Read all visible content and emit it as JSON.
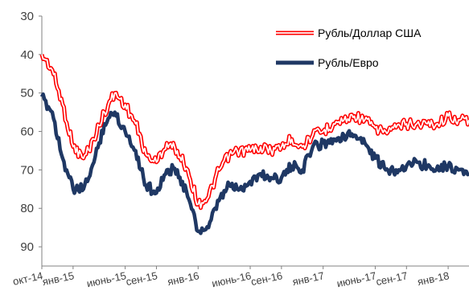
{
  "chart_data": {
    "type": "line",
    "title": "",
    "xlabel": "",
    "ylabel": "",
    "y_inverted": true,
    "ylim": [
      30,
      95
    ],
    "yticks": [
      30,
      40,
      50,
      60,
      70,
      80,
      90
    ],
    "xlim": [
      "2014-10",
      "2018-03"
    ],
    "x_tick_labels": [
      {
        "label": "окт-14",
        "date": "2014-10"
      },
      {
        "label": "янв-15",
        "date": "2015-01"
      },
      {
        "label": "июнь-15",
        "date": "2015-06"
      },
      {
        "label": "сен-15",
        "date": "2015-09"
      },
      {
        "label": "янв-16",
        "date": "2016-01"
      },
      {
        "label": "июнь-16",
        "date": "2016-06"
      },
      {
        "label": "сен-16",
        "date": "2016-09"
      },
      {
        "label": "янв-17",
        "date": "2017-01"
      },
      {
        "label": "июнь-17",
        "date": "2017-06"
      },
      {
        "label": "сен-17",
        "date": "2017-09"
      },
      {
        "label": "янв-18",
        "date": "2018-01"
      }
    ],
    "grid": false,
    "legend_position": "top-right",
    "series": [
      {
        "name": "Рубль/Доллар США",
        "color": "#ff0000",
        "style": "double-line",
        "points": [
          [
            "2014-10",
            40
          ],
          [
            "2014-11",
            44
          ],
          [
            "2014-12",
            53
          ],
          [
            "2015-01",
            64
          ],
          [
            "2015-02",
            67
          ],
          [
            "2015-03",
            62
          ],
          [
            "2015-04",
            55
          ],
          [
            "2015-05",
            50
          ],
          [
            "2015-06",
            53
          ],
          [
            "2015-07",
            58
          ],
          [
            "2015-08",
            66
          ],
          [
            "2015-09",
            68
          ],
          [
            "2015-10",
            63
          ],
          [
            "2015-11",
            65
          ],
          [
            "2015-12",
            70
          ],
          [
            "2016-01",
            79
          ],
          [
            "2016-02",
            77
          ],
          [
            "2016-03",
            70
          ],
          [
            "2016-04",
            66
          ],
          [
            "2016-05",
            65
          ],
          [
            "2016-06",
            65
          ],
          [
            "2016-07",
            64
          ],
          [
            "2016-08",
            65
          ],
          [
            "2016-09",
            64
          ],
          [
            "2016-10",
            62
          ],
          [
            "2016-11",
            64
          ],
          [
            "2016-12",
            61
          ],
          [
            "2017-01",
            60
          ],
          [
            "2017-02",
            58
          ],
          [
            "2017-03",
            57
          ],
          [
            "2017-04",
            56
          ],
          [
            "2017-05",
            57
          ],
          [
            "2017-06",
            59
          ],
          [
            "2017-07",
            60
          ],
          [
            "2017-08",
            59
          ],
          [
            "2017-09",
            58
          ],
          [
            "2017-10",
            58
          ],
          [
            "2017-11",
            58
          ],
          [
            "2017-12",
            58
          ],
          [
            "2018-01",
            56
          ],
          [
            "2018-02",
            57
          ],
          [
            "2018-03",
            57
          ]
        ]
      },
      {
        "name": "Рубль/Евро",
        "color": "#1f3864",
        "style": "thick-line",
        "points": [
          [
            "2014-10",
            51
          ],
          [
            "2014-11",
            55
          ],
          [
            "2014-12",
            67
          ],
          [
            "2015-01",
            75
          ],
          [
            "2015-02",
            75
          ],
          [
            "2015-03",
            68
          ],
          [
            "2015-04",
            58
          ],
          [
            "2015-05",
            55
          ],
          [
            "2015-06",
            60
          ],
          [
            "2015-07",
            65
          ],
          [
            "2015-08",
            74
          ],
          [
            "2015-09",
            76
          ],
          [
            "2015-10",
            70
          ],
          [
            "2015-11",
            70
          ],
          [
            "2015-12",
            77
          ],
          [
            "2016-01",
            86
          ],
          [
            "2016-02",
            85
          ],
          [
            "2016-03",
            78
          ],
          [
            "2016-04",
            74
          ],
          [
            "2016-05",
            75
          ],
          [
            "2016-06",
            73
          ],
          [
            "2016-07",
            71
          ],
          [
            "2016-08",
            72
          ],
          [
            "2016-09",
            72
          ],
          [
            "2016-10",
            69
          ],
          [
            "2016-11",
            70
          ],
          [
            "2016-12",
            64
          ],
          [
            "2017-01",
            63
          ],
          [
            "2017-02",
            62
          ],
          [
            "2017-03",
            61
          ],
          [
            "2017-04",
            61
          ],
          [
            "2017-05",
            63
          ],
          [
            "2017-06",
            67
          ],
          [
            "2017-07",
            70
          ],
          [
            "2017-08",
            70
          ],
          [
            "2017-09",
            69
          ],
          [
            "2017-10",
            68
          ],
          [
            "2017-11",
            69
          ],
          [
            "2017-12",
            69
          ],
          [
            "2018-01",
            69
          ],
          [
            "2018-02",
            70
          ],
          [
            "2018-03",
            71
          ]
        ]
      }
    ]
  }
}
